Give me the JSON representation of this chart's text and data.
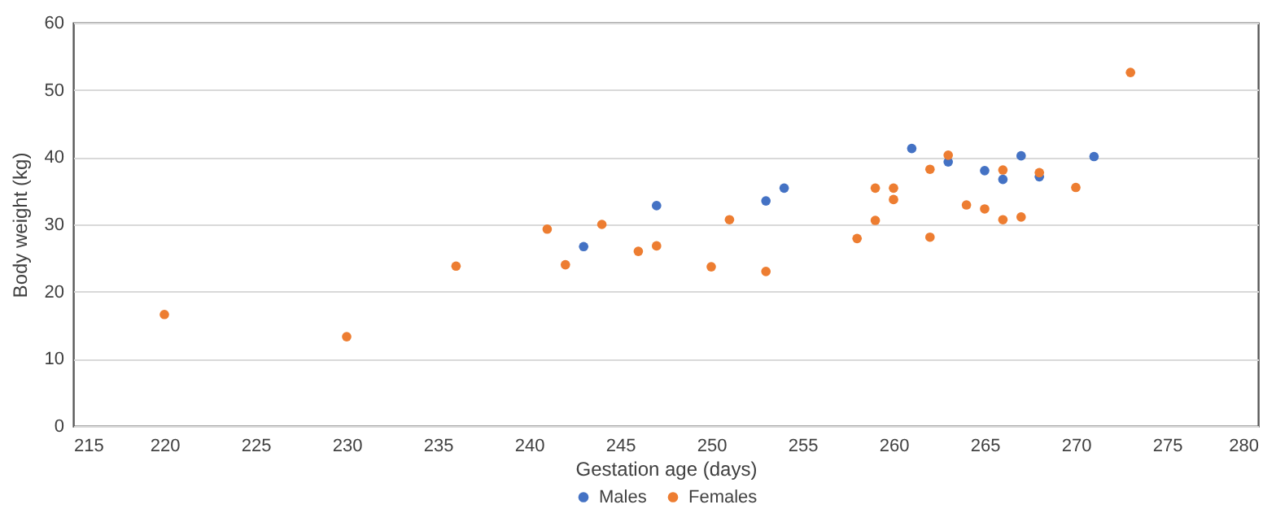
{
  "chart_data": {
    "type": "scatter",
    "xlabel": "Gestation age (days)",
    "ylabel": "Body weight (kg)",
    "xlim": [
      215,
      280
    ],
    "xticks": [
      215,
      220,
      225,
      230,
      235,
      240,
      245,
      250,
      255,
      260,
      265,
      270,
      275,
      280
    ],
    "ylim": [
      0,
      60
    ],
    "yticks": [
      0,
      10,
      20,
      30,
      40,
      50,
      60
    ],
    "grid": "y",
    "legend": "bottom",
    "marker": "circle",
    "series": [
      {
        "name": "Males",
        "color": "#4472c4",
        "x": [
          243,
          247,
          253,
          254,
          261,
          263,
          265,
          266,
          267,
          268,
          271
        ],
        "values": [
          26.7,
          32.8,
          33.5,
          35.4,
          41.3,
          39.3,
          38.0,
          36.7,
          40.2,
          37.1,
          40.1
        ]
      },
      {
        "name": "Females",
        "color": "#ed7d31",
        "x": [
          220,
          230,
          236,
          241,
          242,
          244,
          246,
          247,
          250,
          251,
          253,
          258,
          259,
          259,
          260,
          260,
          262,
          262,
          263,
          264,
          265,
          266,
          266,
          267,
          268,
          270,
          273
        ],
        "values": [
          16.6,
          13.3,
          23.8,
          29.3,
          24.0,
          30.0,
          26.0,
          26.8,
          23.7,
          30.7,
          23.0,
          27.9,
          35.4,
          30.6,
          35.4,
          33.7,
          38.2,
          28.1,
          40.3,
          32.9,
          32.3,
          38.1,
          30.7,
          31.1,
          37.7,
          35.5,
          52.6
        ]
      }
    ]
  }
}
